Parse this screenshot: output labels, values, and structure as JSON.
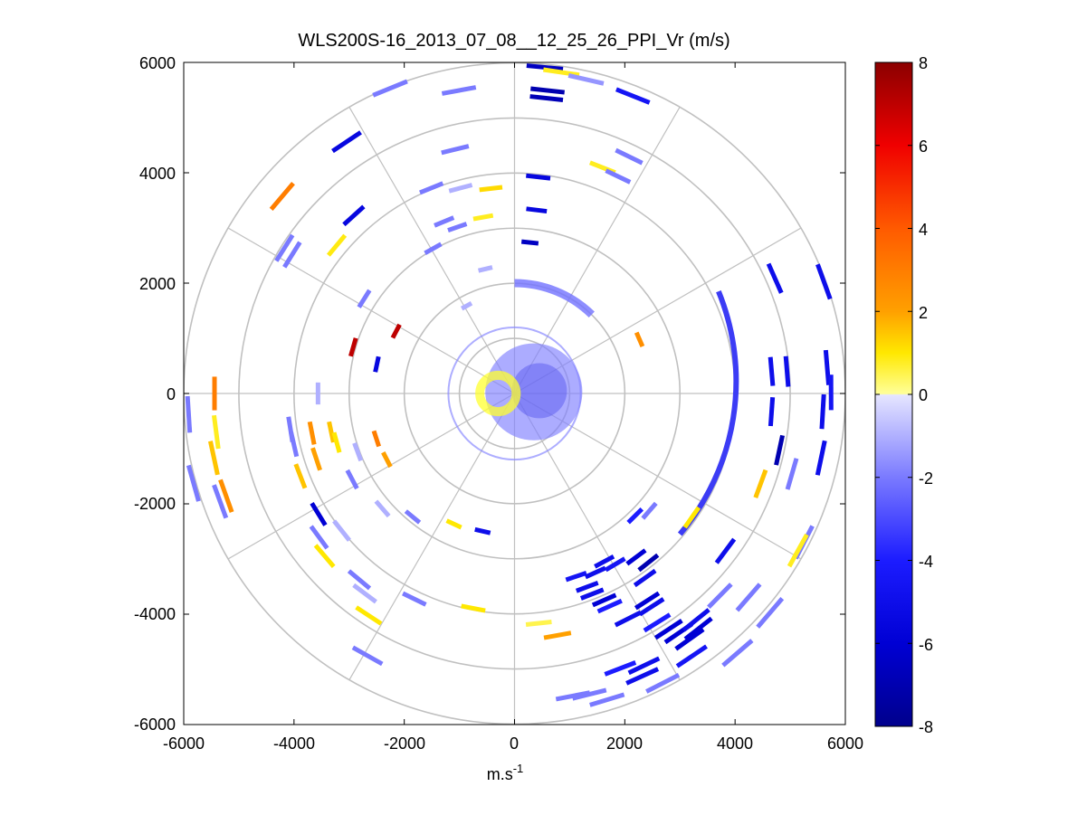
{
  "chart_data": {
    "type": "ppi-polar-scan",
    "title": "WLS200S-16_2013_07_08__12_25_26_PPI_Vr (m/s)",
    "xlabel": "m.s",
    "xlabel_sup": "-1",
    "x_range": [
      -6000,
      6000
    ],
    "y_range": [
      -6000,
      6000
    ],
    "x_ticks": [
      "-6000",
      "-4000",
      "-2000",
      "0",
      "2000",
      "4000",
      "6000"
    ],
    "y_ticks": [
      "6000",
      "4000",
      "2000",
      "0",
      "-2000",
      "-4000",
      "-6000"
    ],
    "polar_grid": {
      "rings": [
        1000,
        2000,
        3000,
        4000,
        5000,
        6000
      ],
      "spokes_deg": [
        0,
        30,
        60,
        90,
        120,
        150,
        180,
        210,
        240,
        270,
        300,
        330
      ]
    },
    "colorbar": {
      "range": [
        -8,
        8
      ],
      "ticks": [
        "8",
        "6",
        "4",
        "2",
        "0",
        "-2",
        "-4",
        "-6",
        "-8"
      ],
      "stops": [
        {
          "v": -8,
          "c": "#00008c"
        },
        {
          "v": -6,
          "c": "#0000d4"
        },
        {
          "v": -4,
          "c": "#1c1cff"
        },
        {
          "v": -2,
          "c": "#7a7aff"
        },
        {
          "v": -0.01,
          "c": "#e6e6ff"
        },
        {
          "v": 0.01,
          "c": "#ffff9a"
        },
        {
          "v": 1,
          "c": "#ffe800"
        },
        {
          "v": 2,
          "c": "#ffa000"
        },
        {
          "v": 4,
          "c": "#ff5a00"
        },
        {
          "v": 6,
          "c": "#f00000"
        },
        {
          "v": 8,
          "c": "#8b0000"
        }
      ]
    },
    "inner_disk": {
      "radius_m": 1200,
      "description": "dense measurements near lidar"
    },
    "radar_segments": [
      {
        "x": 550,
        "y": 5920,
        "vr": -6.5
      },
      {
        "x": 850,
        "y": 5830,
        "vr": 0.8
      },
      {
        "x": 1300,
        "y": 5700,
        "vr": -1.5
      },
      {
        "x": 2150,
        "y": 5400,
        "vr": -4.5
      },
      {
        "x": 600,
        "y": 5500,
        "vr": -7
      },
      {
        "x": 580,
        "y": 5360,
        "vr": -6.8
      },
      {
        "x": -2260,
        "y": 5540,
        "vr": -2
      },
      {
        "x": -1010,
        "y": 5500,
        "vr": -2
      },
      {
        "x": -3050,
        "y": 4570,
        "vr": -5.5
      },
      {
        "x": 2080,
        "y": 4300,
        "vr": -2
      },
      {
        "x": 1600,
        "y": 4100,
        "vr": 0.8
      },
      {
        "x": -1080,
        "y": 4430,
        "vr": -2
      },
      {
        "x": 1880,
        "y": 3940,
        "vr": -2
      },
      {
        "x": -4220,
        "y": 3580,
        "vr": 3
      },
      {
        "x": 430,
        "y": 3930,
        "vr": -5.5
      },
      {
        "x": -1510,
        "y": 3730,
        "vr": -2
      },
      {
        "x": -980,
        "y": 3730,
        "vr": -1
      },
      {
        "x": -430,
        "y": 3720,
        "vr": 1.2
      },
      {
        "x": 400,
        "y": 3330,
        "vr": -5.5
      },
      {
        "x": -2920,
        "y": 3230,
        "vr": -5.5
      },
      {
        "x": -1280,
        "y": 3120,
        "vr": -2
      },
      {
        "x": -1040,
        "y": 3020,
        "vr": -2
      },
      {
        "x": -570,
        "y": 3200,
        "vr": 0.8
      },
      {
        "x": -3230,
        "y": 2690,
        "vr": 0.9
      },
      {
        "x": 280,
        "y": 2740,
        "vr": -6.5
      },
      {
        "x": -1480,
        "y": 2630,
        "vr": -2
      },
      {
        "x": -4180,
        "y": 2640,
        "vr": -2
      },
      {
        "x": -4040,
        "y": 2520,
        "vr": -2
      },
      {
        "x": -530,
        "y": 2260,
        "vr": -1
      },
      {
        "x": 4730,
        "y": 2090,
        "vr": -5
      },
      {
        "x": 5620,
        "y": 2030,
        "vr": -5
      },
      {
        "x": -2730,
        "y": 1720,
        "vr": -2
      },
      {
        "x": 2270,
        "y": 980,
        "vr": 2.5
      },
      {
        "x": -2150,
        "y": 1130,
        "vr": 7
      },
      {
        "x": -2930,
        "y": 840,
        "vr": 7
      },
      {
        "x": 4670,
        "y": 400,
        "vr": -5
      },
      {
        "x": 4950,
        "y": 400,
        "vr": -5
      },
      {
        "x": 5680,
        "y": 470,
        "vr": -5
      },
      {
        "x": 5750,
        "y": 20,
        "vr": -4.5
      },
      {
        "x": -2500,
        "y": 530,
        "vr": -5.5
      },
      {
        "x": 4670,
        "y": -330,
        "vr": -5
      },
      {
        "x": 5600,
        "y": -330,
        "vr": -5
      },
      {
        "x": -5450,
        "y": 0,
        "vr": 3
      },
      {
        "x": -5920,
        "y": -380,
        "vr": -2
      },
      {
        "x": -3570,
        "y": 0,
        "vr": -1
      },
      {
        "x": -5420,
        "y": -700,
        "vr": 0.8
      },
      {
        "x": -4070,
        "y": -650,
        "vr": -2
      },
      {
        "x": -3680,
        "y": -720,
        "vr": 2.5
      },
      {
        "x": -3330,
        "y": -700,
        "vr": 1.5
      },
      {
        "x": -3230,
        "y": -890,
        "vr": 1
      },
      {
        "x": -2510,
        "y": -820,
        "vr": 3
      },
      {
        "x": -4010,
        "y": -920,
        "vr": -2
      },
      {
        "x": -3600,
        "y": -1190,
        "vr": 2
      },
      {
        "x": -2850,
        "y": -1060,
        "vr": -1
      },
      {
        "x": -2320,
        "y": -1200,
        "vr": 2
      },
      {
        "x": 4810,
        "y": -1030,
        "vr": -7
      },
      {
        "x": -5460,
        "y": -1170,
        "vr": 1.5
      },
      {
        "x": -5830,
        "y": -1630,
        "vr": -2
      },
      {
        "x": -5240,
        "y": -1860,
        "vr": 2.5
      },
      {
        "x": -5350,
        "y": -1960,
        "vr": -2
      },
      {
        "x": -3890,
        "y": -1500,
        "vr": 1.5
      },
      {
        "x": -2950,
        "y": -1560,
        "vr": -2
      },
      {
        "x": 5570,
        "y": -1170,
        "vr": -5
      },
      {
        "x": 5040,
        "y": -1460,
        "vr": -2
      },
      {
        "x": 4470,
        "y": -1640,
        "vr": 1.5
      },
      {
        "x": -3560,
        "y": -2190,
        "vr": -6
      },
      {
        "x": -2400,
        "y": -2090,
        "vr": -1
      },
      {
        "x": -1850,
        "y": -2240,
        "vr": -2
      },
      {
        "x": -3140,
        "y": -2490,
        "vr": -1
      },
      {
        "x": -3550,
        "y": -2610,
        "vr": -2
      },
      {
        "x": 3220,
        "y": -2250,
        "vr": 1
      },
      {
        "x": 3830,
        "y": -2860,
        "vr": -5
      },
      {
        "x": 5260,
        "y": -2700,
        "vr": -2
      },
      {
        "x": 5150,
        "y": -2850,
        "vr": 0.8
      },
      {
        "x": -3450,
        "y": -2950,
        "vr": 1
      },
      {
        "x": -2820,
        "y": -3380,
        "vr": -2
      },
      {
        "x": -2650,
        "y": -4030,
        "vr": 1
      },
      {
        "x": -2720,
        "y": -3630,
        "vr": -1
      },
      {
        "x": -1820,
        "y": -3730,
        "vr": -2
      },
      {
        "x": -750,
        "y": -3900,
        "vr": 1
      },
      {
        "x": 440,
        "y": -4170,
        "vr": 0.5
      },
      {
        "x": 780,
        "y": -4390,
        "vr": 2
      },
      {
        "x": 1120,
        "y": -3320,
        "vr": -4.5
      },
      {
        "x": 1470,
        "y": -3250,
        "vr": -5
      },
      {
        "x": 1630,
        "y": -3050,
        "vr": -5
      },
      {
        "x": 1830,
        "y": -3100,
        "vr": -4.5
      },
      {
        "x": 2210,
        "y": -2970,
        "vr": -6
      },
      {
        "x": 2430,
        "y": -3070,
        "vr": -7
      },
      {
        "x": 2370,
        "y": -3350,
        "vr": -5
      },
      {
        "x": 1320,
        "y": -3510,
        "vr": -5
      },
      {
        "x": 1410,
        "y": -3640,
        "vr": -5
      },
      {
        "x": 1630,
        "y": -3750,
        "vr": -6
      },
      {
        "x": 1730,
        "y": -3860,
        "vr": -4
      },
      {
        "x": 2410,
        "y": -3760,
        "vr": -6
      },
      {
        "x": 2490,
        "y": -3870,
        "vr": -5
      },
      {
        "x": 2060,
        "y": -4090,
        "vr": -5
      },
      {
        "x": 2590,
        "y": -4160,
        "vr": -4
      },
      {
        "x": 2800,
        "y": -4280,
        "vr": -6
      },
      {
        "x": 2980,
        "y": -4350,
        "vr": -6
      },
      {
        "x": 3300,
        "y": -4110,
        "vr": -5
      },
      {
        "x": 3730,
        "y": -3670,
        "vr": -2
      },
      {
        "x": 4250,
        "y": -3700,
        "vr": -2
      },
      {
        "x": 4640,
        "y": -3980,
        "vr": -2
      },
      {
        "x": 3180,
        "y": -4460,
        "vr": -6
      },
      {
        "x": 3220,
        "y": -4770,
        "vr": -4.5
      },
      {
        "x": 1920,
        "y": -4990,
        "vr": -4
      },
      {
        "x": 2350,
        "y": -4940,
        "vr": -5
      },
      {
        "x": 2320,
        "y": -5130,
        "vr": -5
      },
      {
        "x": 2690,
        "y": -5260,
        "vr": -2
      },
      {
        "x": 1360,
        "y": -5460,
        "vr": -2
      },
      {
        "x": 1060,
        "y": -5490,
        "vr": -2
      },
      {
        "x": 1680,
        "y": -5560,
        "vr": -2
      },
      {
        "x": 4050,
        "y": -4710,
        "vr": -2
      },
      {
        "x": -2670,
        "y": -4760,
        "vr": -2
      },
      {
        "x": 3340,
        "y": -4270,
        "vr": -6
      },
      {
        "x": -1100,
        "y": -2370,
        "vr": 1
      },
      {
        "x": -580,
        "y": -2500,
        "vr": -5
      },
      {
        "x": 2190,
        "y": -2220,
        "vr": -4
      },
      {
        "x": 2450,
        "y": -2130,
        "vr": -2
      },
      {
        "x": -870,
        "y": 1590,
        "vr": -1
      }
    ]
  }
}
